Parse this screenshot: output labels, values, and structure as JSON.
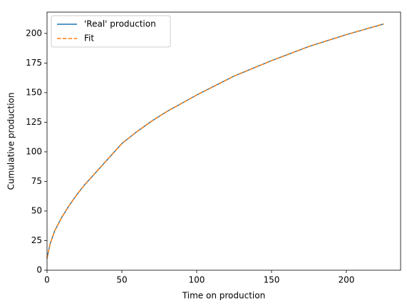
{
  "chart_data": {
    "type": "line",
    "xlabel": "Time on production",
    "ylabel": "Cumulative production",
    "x": [
      0,
      2,
      5,
      10,
      15,
      20,
      25,
      30,
      40,
      50,
      60,
      70,
      80,
      90,
      100,
      125,
      150,
      175,
      200,
      225
    ],
    "series": [
      {
        "name": "'Real' production",
        "color": "#1f77b4",
        "dash": "solid",
        "values": [
          10,
          22,
          33,
          45,
          55,
          64,
          72,
          79,
          93,
          107,
          117,
          126,
          134,
          141,
          148,
          164,
          177,
          189,
          199,
          208
        ]
      },
      {
        "name": "Fit",
        "color": "#ff7f0e",
        "dash": "dashed",
        "values": [
          10,
          22,
          33,
          45,
          55,
          64,
          72,
          79,
          93,
          107,
          117,
          126,
          134,
          141,
          148,
          164,
          177,
          189,
          199,
          208
        ]
      }
    ],
    "xlim": [
      0,
      236.25
    ],
    "ylim": [
      0,
      218
    ],
    "xticks": [
      0,
      50,
      100,
      150,
      200
    ],
    "yticks": [
      0,
      25,
      50,
      75,
      100,
      125,
      150,
      175,
      200
    ],
    "legend": "upper left"
  }
}
